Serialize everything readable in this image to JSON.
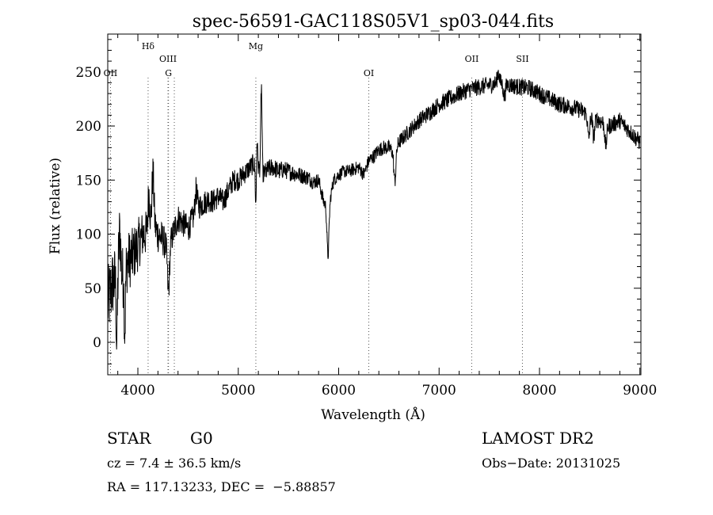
{
  "chart_data": {
    "type": "line",
    "title": "spec-56591-GAC118S05V1_sp03-044.fits",
    "xlabel": "Wavelength (Å)",
    "ylabel": "Flux (relative)",
    "xlim": [
      3700,
      9010
    ],
    "ylim": [
      -30,
      285
    ],
    "xticks": [
      4000,
      5000,
      6000,
      7000,
      8000,
      9000
    ],
    "yticks": [
      0,
      50,
      100,
      150,
      200,
      250
    ],
    "xtick_labels": [
      "4000",
      "5000",
      "6000",
      "7000",
      "8000",
      "9000"
    ],
    "ytick_labels": [
      "0",
      "50",
      "100",
      "150",
      "200",
      "250"
    ],
    "anchors": [
      [
        3700,
        35
      ],
      [
        3750,
        55
      ],
      [
        3800,
        60
      ],
      [
        3850,
        60
      ],
      [
        3900,
        75
      ],
      [
        3950,
        80
      ],
      [
        4000,
        90
      ],
      [
        4050,
        100
      ],
      [
        4100,
        100
      ],
      [
        4150,
        110
      ],
      [
        4200,
        100
      ],
      [
        4250,
        95
      ],
      [
        4300,
        85
      ],
      [
        4350,
        100
      ],
      [
        4400,
        115
      ],
      [
        4450,
        110
      ],
      [
        4500,
        105
      ],
      [
        4550,
        115
      ],
      [
        4600,
        125
      ],
      [
        4650,
        128
      ],
      [
        4700,
        132
      ],
      [
        4750,
        130
      ],
      [
        4800,
        135
      ],
      [
        4850,
        130
      ],
      [
        4900,
        140
      ],
      [
        4950,
        150
      ],
      [
        5000,
        150
      ],
      [
        5050,
        155
      ],
      [
        5100,
        160
      ],
      [
        5150,
        165
      ],
      [
        5200,
        162
      ],
      [
        5250,
        155
      ],
      [
        5300,
        160
      ],
      [
        5350,
        162
      ],
      [
        5400,
        158
      ],
      [
        5450,
        160
      ],
      [
        5500,
        158
      ],
      [
        5600,
        155
      ],
      [
        5700,
        152
      ],
      [
        5750,
        148
      ],
      [
        5800,
        150
      ],
      [
        5850,
        130
      ],
      [
        5900,
        125
      ],
      [
        5950,
        150
      ],
      [
        6000,
        155
      ],
      [
        6050,
        158
      ],
      [
        6100,
        158
      ],
      [
        6150,
        160
      ],
      [
        6200,
        162
      ],
      [
        6250,
        155
      ],
      [
        6300,
        168
      ],
      [
        6350,
        172
      ],
      [
        6400,
        178
      ],
      [
        6450,
        180
      ],
      [
        6500,
        180
      ],
      [
        6550,
        175
      ],
      [
        6600,
        185
      ],
      [
        6700,
        195
      ],
      [
        6800,
        205
      ],
      [
        6900,
        212
      ],
      [
        7000,
        220
      ],
      [
        7100,
        225
      ],
      [
        7200,
        230
      ],
      [
        7300,
        234
      ],
      [
        7400,
        236
      ],
      [
        7500,
        238
      ],
      [
        7600,
        240
      ],
      [
        7700,
        238
      ],
      [
        7800,
        236
      ],
      [
        7900,
        235
      ],
      [
        8000,
        230
      ],
      [
        8100,
        225
      ],
      [
        8200,
        220
      ],
      [
        8300,
        218
      ],
      [
        8400,
        215
      ],
      [
        8500,
        210
      ],
      [
        8600,
        205
      ],
      [
        8700,
        200
      ],
      [
        8800,
        205
      ],
      [
        8900,
        195
      ],
      [
        9000,
        185
      ]
    ],
    "features": [
      [
        3790,
        -60
      ],
      [
        3820,
        40
      ],
      [
        3870,
        -55
      ],
      [
        4110,
        35
      ],
      [
        4150,
        45
      ],
      [
        4305,
        -40
      ],
      [
        4580,
        20
      ],
      [
        5183,
        60
      ],
      [
        5230,
        80
      ],
      [
        5178,
        -70
      ],
      [
        5893,
        -45
      ],
      [
        6560,
        -28
      ],
      [
        7590,
        10
      ],
      [
        7650,
        -12
      ],
      [
        8490,
        -22
      ],
      [
        8540,
        -18
      ],
      [
        8660,
        -20
      ]
    ],
    "noise": [
      [
        3700,
        35
      ],
      [
        4300,
        14
      ],
      [
        4800,
        11
      ],
      [
        5300,
        9
      ],
      [
        6000,
        6
      ],
      [
        7000,
        8
      ],
      [
        8000,
        8
      ],
      [
        9000,
        8
      ]
    ],
    "lines": [
      {
        "name": "OII",
        "x": 3727,
        "label_row": 3
      },
      {
        "name": "Hδ",
        "x": 4102,
        "label_row": 1
      },
      {
        "name": "OIII",
        "x": 4300,
        "label_row": 2
      },
      {
        "name": "G",
        "x": 4305,
        "label_row": 3
      },
      {
        "name": "",
        "x": 4363,
        "label_row": 0
      },
      {
        "name": "Mg",
        "x": 5175,
        "label_row": 1
      },
      {
        "name": "OI",
        "x": 6300,
        "label_row": 3
      },
      {
        "name": "OII",
        "x": 7325,
        "label_row": 2
      },
      {
        "name": "SII",
        "x": 7830,
        "label_row": 2
      }
    ]
  },
  "info": {
    "class": "STAR",
    "subclass": "G0",
    "cz": "cz = 7.4 ± 36.5 km/s",
    "radec": "RA = 117.13233, DEC =  −5.88857",
    "survey": "LAMOST DR2",
    "obsdate": "Obs−Date: 20131025"
  }
}
